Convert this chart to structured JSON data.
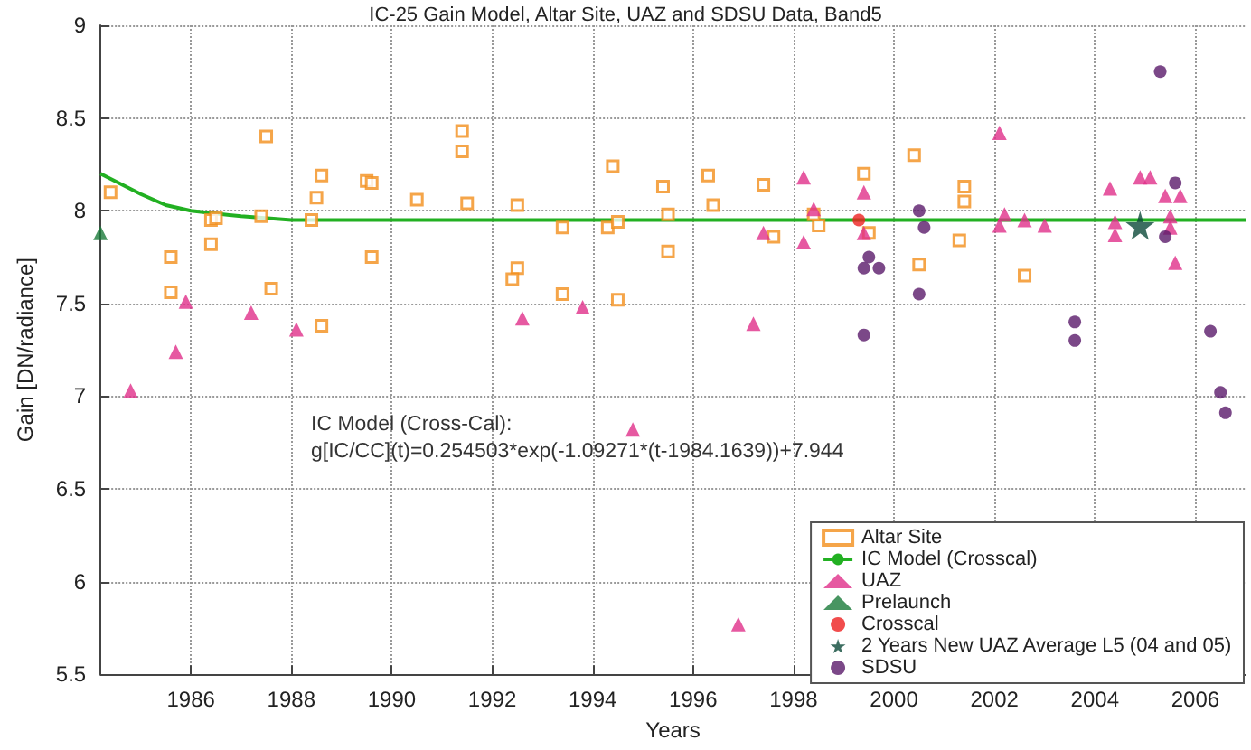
{
  "chart_data": {
    "type": "scatter",
    "title": "IC-25 Gain Model, Altar Site, UAZ and SDSU Data, Band5",
    "xlabel": "Years",
    "ylabel": "Gain [DN/radiance]",
    "xlim": [
      1984.2,
      2007
    ],
    "xticks": [
      1986,
      1988,
      1990,
      1992,
      1994,
      1996,
      1998,
      2000,
      2002,
      2004,
      2006
    ],
    "ylim": [
      5.5,
      9
    ],
    "yticks": [
      5.5,
      6,
      6.5,
      7,
      7.5,
      8,
      8.5,
      9
    ],
    "grid": true,
    "legend": "bottom right",
    "annotations": [
      "IC Model (Cross-Cal):",
      "g[IC/CC](t)=0.254503*exp(-1.09271*(t-1984.1639))+7.944"
    ],
    "series": [
      {
        "name": "Altar Site",
        "marker": "square",
        "color": "#f28e1c",
        "x": [
          1984.4,
          1985.6,
          1985.6,
          1986.4,
          1986.5,
          1986.4,
          1987.5,
          1987.4,
          1987.6,
          1988.5,
          1988.6,
          1988.4,
          1988.6,
          1989.5,
          1989.6,
          1989.6,
          1990.5,
          1991.4,
          1991.4,
          1991.5,
          1992.5,
          1992.5,
          1992.4,
          1993.4,
          1993.4,
          1994.4,
          1994.3,
          1994.5,
          1994.5,
          1995.4,
          1995.5,
          1995.5,
          1996.3,
          1996.4,
          1997.4,
          1997.6,
          1998.5,
          1998.4,
          1999.4,
          1999.5,
          2000.4,
          2000.5,
          2001.4,
          2001.4,
          2001.3,
          2002.6
        ],
        "values": [
          8.1,
          7.75,
          7.56,
          7.95,
          7.96,
          7.82,
          8.4,
          7.97,
          7.58,
          8.07,
          8.19,
          7.95,
          7.38,
          8.16,
          8.15,
          7.75,
          8.06,
          8.43,
          8.32,
          8.04,
          8.03,
          7.69,
          7.63,
          7.91,
          7.55,
          8.24,
          7.91,
          7.94,
          7.52,
          8.13,
          7.98,
          7.78,
          8.19,
          8.03,
          8.14,
          7.86,
          7.92,
          7.98,
          8.2,
          7.88,
          8.3,
          7.71,
          8.13,
          8.05,
          7.84,
          7.65
        ]
      },
      {
        "name": "IC Model (Crosscal)",
        "type": "line",
        "marker": "none",
        "color": "#22b022",
        "x": [
          1984.2,
          1985,
          1985.5,
          1986,
          1987,
          1988,
          2007
        ],
        "values": [
          8.2,
          8.09,
          8.03,
          8.0,
          7.97,
          7.95,
          7.95
        ]
      },
      {
        "name": "UAZ",
        "marker": "triangle",
        "color": "#e0308a",
        "x": [
          1985.9,
          1985.7,
          1987.2,
          1988.1,
          1992.6,
          1993.8,
          1984.8,
          1994.8,
          1996.9,
          1998.2,
          1999.4,
          1998.4,
          1997.4,
          1998.2,
          1997.2,
          1999.4,
          2002.1,
          2002.2,
          2002.1,
          2002.6,
          2003.0,
          2004.3,
          2004.4,
          2004.4,
          2004.9,
          2005.1,
          2005.4,
          2005.7,
          2005.5,
          2005.5,
          2005.6
        ],
        "values": [
          7.51,
          7.24,
          7.45,
          7.36,
          7.42,
          7.48,
          7.03,
          6.82,
          5.77,
          8.18,
          8.1,
          8.01,
          7.88,
          7.83,
          7.39,
          7.88,
          8.42,
          7.98,
          7.92,
          7.95,
          7.92,
          8.12,
          7.94,
          7.87,
          8.18,
          8.18,
          8.08,
          8.08,
          7.97,
          7.91,
          7.72
        ]
      },
      {
        "name": "Prelaunch",
        "marker": "triangle",
        "color": "#1a7a3a",
        "x": [
          1984.2
        ],
        "values": [
          7.88
        ]
      },
      {
        "name": "Crosscal",
        "marker": "circle",
        "color": "#ee2020",
        "x": [
          1999.3
        ],
        "values": [
          7.95
        ]
      },
      {
        "name": "2 Years New UAZ Average L5 (04 and 05)",
        "marker": "star",
        "color": "#0d4a3a",
        "x": [
          2004.9
        ],
        "values": [
          7.92
        ]
      },
      {
        "name": "SDSU",
        "marker": "circle",
        "color": "#5a1a6a",
        "x": [
          2005.3,
          2005.6,
          2005.4,
          2000.5,
          2000.6,
          1999.5,
          1999.4,
          1999.7,
          2000.5,
          1999.4,
          2003.6,
          2003.6,
          2006.3,
          2006.5,
          2006.6
        ],
        "values": [
          8.75,
          8.15,
          7.86,
          8.0,
          7.91,
          7.75,
          7.69,
          7.69,
          7.55,
          7.33,
          7.4,
          7.3,
          7.35,
          7.02,
          6.91
        ]
      }
    ]
  }
}
